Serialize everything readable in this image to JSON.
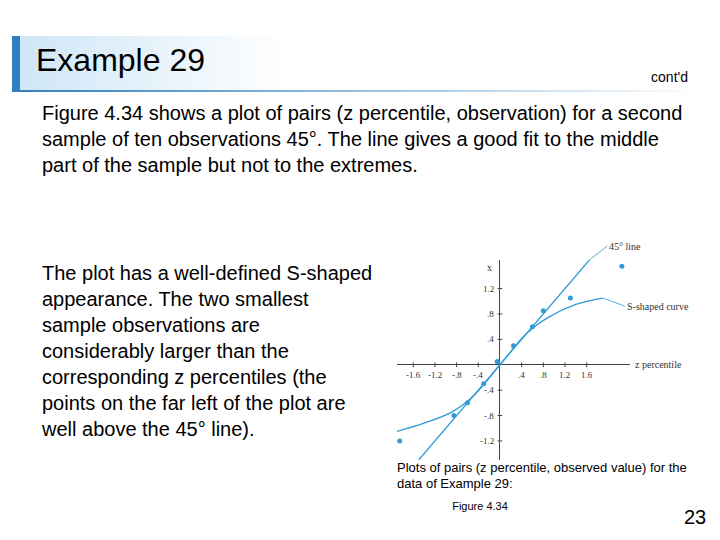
{
  "slide": {
    "title": "Example 29",
    "subtitle": "cont'd",
    "paragraphs": [
      "Figure 4.34 shows a plot of pairs (z percentile, observation) for a second sample of ten observations 45°. The line gives a good fit to the middle part of the sample but not to the extremes.",
      "The plot has a well-defined S-shaped appearance. The two smallest sample observations are considerably larger than the corresponding z percentiles (the points on the far left of the plot are well above the 45° line)."
    ],
    "caption": "Plots of pairs (z percentile, observed value) for the data of Example 29:",
    "figure_label": "Figure 4.34",
    "page_number": "23"
  },
  "chart_data": {
    "type": "scatter",
    "x_label": "z percentile",
    "y_label": "x",
    "x": [
      -1.85,
      -0.85,
      -0.6,
      -0.3,
      -0.05,
      0.25,
      0.6,
      0.8,
      1.3,
      2.25
    ],
    "values": [
      -1.2,
      -0.8,
      -0.6,
      -0.3,
      0.05,
      0.3,
      0.6,
      0.85,
      1.05,
      1.55
    ],
    "color": "#2f9bd7",
    "marker": "circle",
    "series": [
      {
        "name": "45° line",
        "type": "line",
        "color": "#2f9bd7",
        "line_style": "solid",
        "x": [
          -1.5,
          1.65
        ],
        "values": [
          -1.5,
          1.65
        ]
      },
      {
        "name": "S-shaped curve",
        "type": "line",
        "color": "#2f9bd7",
        "line_style": "solid",
        "x": [
          -1.9,
          -1.4,
          -0.9,
          -0.5,
          0,
          0.5,
          0.9,
          1.4,
          1.9
        ],
        "values": [
          -1.05,
          -0.92,
          -0.75,
          -0.5,
          0,
          0.5,
          0.75,
          0.95,
          1.05
        ]
      }
    ],
    "xlim": [
      -1.9,
      2.4
    ],
    "ylim": [
      -1.5,
      1.65
    ],
    "xticks": [
      -1.6,
      -1.2,
      {
        "value": -0.8,
        "label": "-.8"
      },
      {
        "value": -0.4,
        "label": "-.4"
      },
      {
        "value": 0.4,
        "label": ".4"
      },
      {
        "value": 0.8,
        "label": ".8"
      },
      1.2,
      1.6
    ],
    "yticks": [
      1.2,
      {
        "value": 0.8,
        "label": ".8"
      },
      {
        "value": 0.4,
        "label": ".4"
      },
      {
        "value": -0.4,
        "label": "-.4"
      },
      {
        "value": -0.8,
        "label": "-.8"
      },
      -1.2
    ],
    "grid": false
  }
}
